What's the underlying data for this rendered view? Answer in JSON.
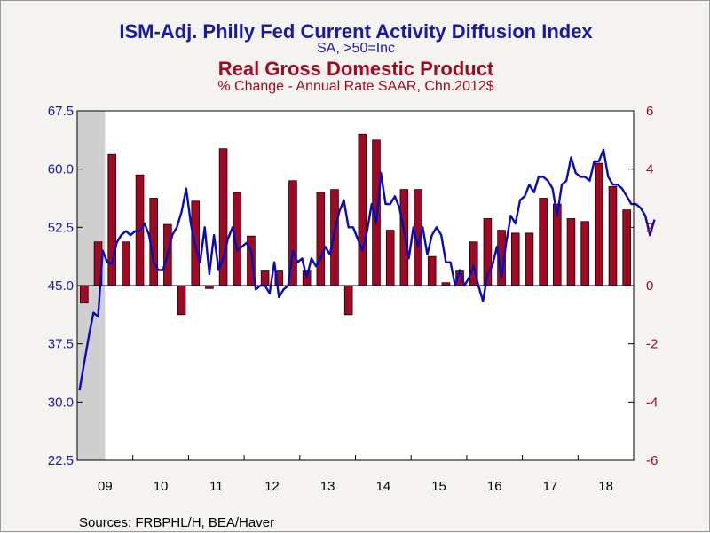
{
  "header": {
    "title_primary": "ISM-Adj. Philly Fed Current Activity Diffusion Index",
    "subtitle_primary": "SA, >50=Inc",
    "title_secondary": "Real Gross Domestic Product",
    "subtitle_secondary": "% Change - Annual Rate     SAAR, Chn.2012$"
  },
  "source": "Sources:  FRBPHL/H, BEA/Haver",
  "colors": {
    "line": "#0b0bb5",
    "bar": "#9e0a23",
    "left_axis_text": "#1a1a9e",
    "right_axis_text": "#9e0a23",
    "recession": "#cfcfcf"
  },
  "chart_data": {
    "type": "bar+line",
    "x_range": [
      "2009-01",
      "2018-12"
    ],
    "x_ticks": [
      "09",
      "10",
      "11",
      "12",
      "13",
      "14",
      "15",
      "16",
      "17",
      "18"
    ],
    "left_axis": {
      "ticks": [
        "22.5",
        "30.0",
        "37.5",
        "45.0",
        "52.5",
        "60.0",
        "67.5"
      ],
      "ylim": [
        22.5,
        67.5
      ]
    },
    "right_axis": {
      "ticks": [
        "-6",
        "-4",
        "-2",
        "0",
        "2",
        "4",
        "6"
      ],
      "ylim": [
        -6,
        6
      ]
    },
    "recession_shading": [
      "2009-01",
      "2009-06"
    ],
    "zero_line_right_axis": 0,
    "gdp_series": {
      "quarters": [
        "2009Q1",
        "2009Q2",
        "2009Q3",
        "2009Q4",
        "2010Q1",
        "2010Q2",
        "2010Q3",
        "2010Q4",
        "2011Q1",
        "2011Q2",
        "2011Q3",
        "2011Q4",
        "2012Q1",
        "2012Q2",
        "2012Q3",
        "2012Q4",
        "2013Q1",
        "2013Q2",
        "2013Q3",
        "2013Q4",
        "2014Q1",
        "2014Q2",
        "2014Q3",
        "2014Q4",
        "2015Q1",
        "2015Q2",
        "2015Q3",
        "2015Q4",
        "2016Q1",
        "2016Q2",
        "2016Q3",
        "2016Q4",
        "2017Q1",
        "2017Q2",
        "2017Q3",
        "2017Q4",
        "2018Q1",
        "2018Q2",
        "2018Q3",
        "2018Q4"
      ],
      "values": [
        -0.6,
        1.5,
        4.5,
        1.5,
        3.8,
        3.0,
        2.1,
        -1.0,
        2.9,
        -0.1,
        4.7,
        3.2,
        1.7,
        0.5,
        0.5,
        3.6,
        0.5,
        3.2,
        3.3,
        -1.0,
        5.2,
        5.0,
        1.9,
        3.3,
        3.3,
        1.0,
        0.1,
        0.5,
        1.5,
        2.3,
        1.9,
        1.8,
        1.8,
        3.0,
        2.8,
        2.3,
        2.2,
        4.2,
        3.4,
        2.6
      ]
    },
    "philly_series": {
      "start": "2009-01",
      "values": [
        31.5,
        35.0,
        38.5,
        41.5,
        41.0,
        49.5,
        48.0,
        47.8,
        50.5,
        51.5,
        52.0,
        51.5,
        52.0,
        52.0,
        53.0,
        51.5,
        48.0,
        47.0,
        47.0,
        49.0,
        51.5,
        52.5,
        54.5,
        57.5,
        53.0,
        50.0,
        48.0,
        52.5,
        46.5,
        51.5,
        47.0,
        48.5,
        51.0,
        52.5,
        49.5,
        50.0,
        50.5,
        49.5,
        44.5,
        45.0,
        45.0,
        44.0,
        48.0,
        43.5,
        44.5,
        45.0,
        49.5,
        48.0,
        48.5,
        46.0,
        48.5,
        47.5,
        48.5,
        50.0,
        49.0,
        52.0,
        54.5,
        56.0,
        52.5,
        52.5,
        51.0,
        49.5,
        52.0,
        55.5,
        53.0,
        59.5,
        55.5,
        55.5,
        56.5,
        55.0,
        52.0,
        48.5,
        52.5,
        50.0,
        52.5,
        49.0,
        51.5,
        52.5,
        51.5,
        48.0,
        48.0,
        45.0,
        47.0,
        45.0,
        46.0,
        47.5,
        45.0,
        43.0,
        46.5,
        47.5,
        50.0,
        46.0,
        50.5,
        54.0,
        53.0,
        56.0,
        56.5,
        58.0,
        57.0,
        59.0,
        59.0,
        58.5,
        57.5,
        54.0,
        58.0,
        58.5,
        61.5,
        59.5,
        59.0,
        59.0,
        58.5,
        61.0,
        61.0,
        62.5,
        59.0,
        58.0,
        58.0,
        57.5,
        56.5,
        55.5,
        55.5,
        55.0,
        54.0,
        51.5,
        53.5
      ]
    }
  }
}
